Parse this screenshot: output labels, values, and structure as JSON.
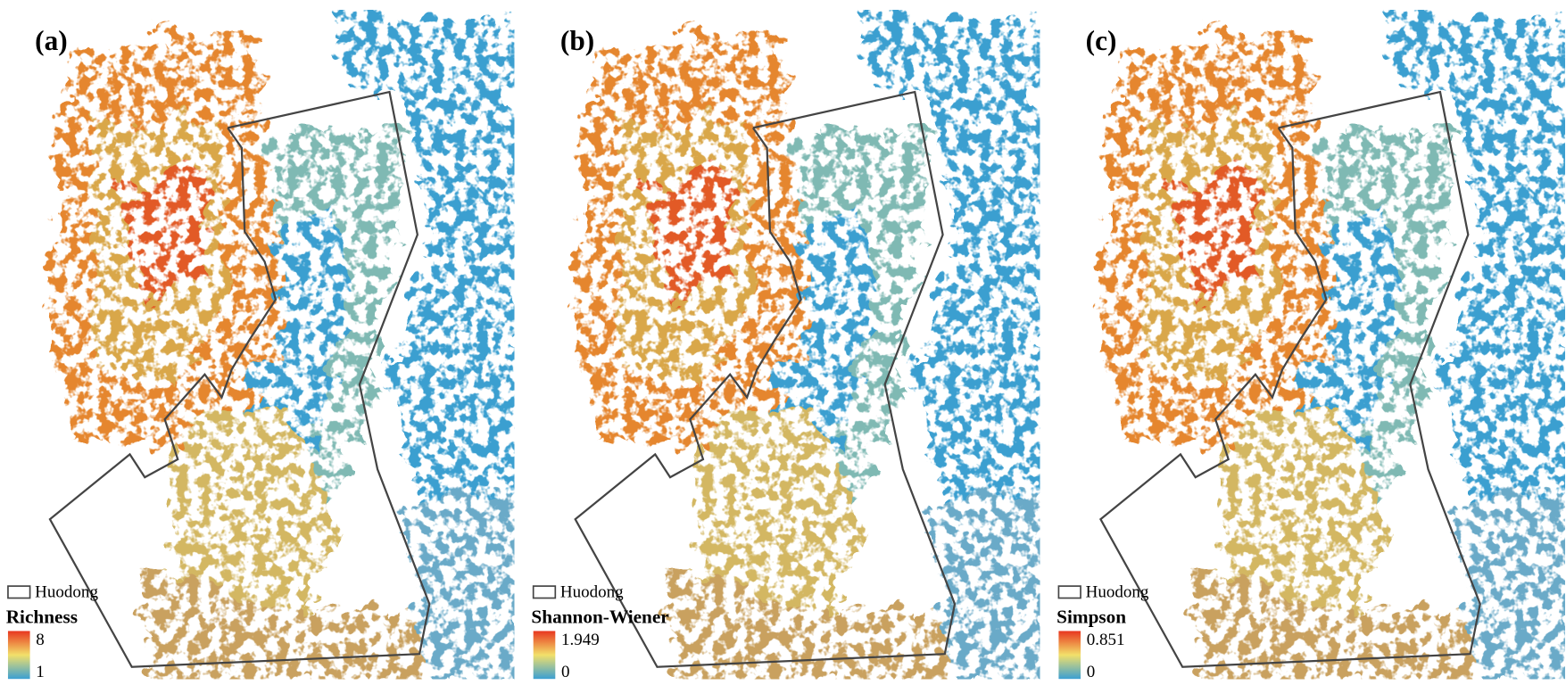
{
  "panels": [
    {
      "label": "(a)",
      "boundary_label": "Huodong",
      "legend_title": "Richness",
      "max": "8",
      "min": "1"
    },
    {
      "label": "(b)",
      "boundary_label": "Huodong",
      "legend_title": "Shannon-Wiener",
      "max": "1.949",
      "min": "0"
    },
    {
      "label": "(c)",
      "boundary_label": "Huodong",
      "legend_title": "Simpson",
      "max": "0.851",
      "min": "0"
    }
  ]
}
